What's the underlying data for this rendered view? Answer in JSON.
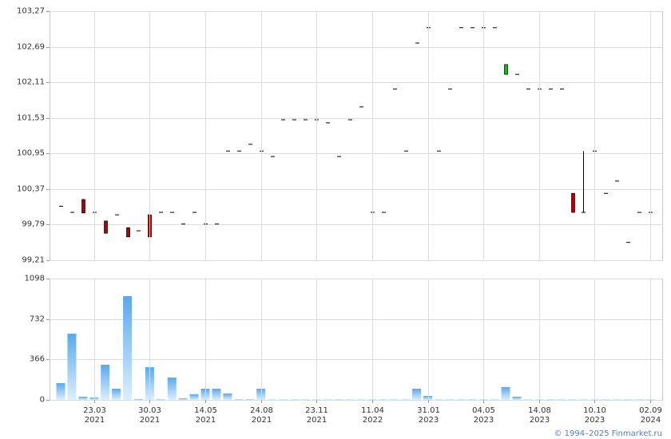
{
  "chart_data": [
    {
      "type": "candlestick",
      "open": [
        100.09,
        99.99,
        100.2,
        99.99,
        99.85,
        99.95,
        99.74,
        99.69,
        99.95,
        99.99,
        99.99,
        99.8,
        99.99,
        99.8,
        99.8,
        100.99,
        100.99,
        101.1,
        100.99,
        100.9,
        101.5,
        101.5,
        101.5,
        101.5,
        101.45,
        100.9,
        101.5,
        101.71,
        99.99,
        99.99,
        102.0,
        100.99,
        102.75,
        103.0,
        100.99,
        102.0,
        103.0,
        103.0,
        103.0,
        103.0,
        102.24,
        102.24,
        102.0,
        102.0,
        102.0,
        102.0,
        100.3,
        99.99,
        100.99,
        100.3,
        100.5,
        99.5,
        99.99,
        99.99
      ],
      "high": [
        100.09,
        99.99,
        100.2,
        99.99,
        99.85,
        99.95,
        99.74,
        99.69,
        99.95,
        99.99,
        99.99,
        99.8,
        99.99,
        99.8,
        99.8,
        100.99,
        100.99,
        101.1,
        100.99,
        100.9,
        101.5,
        101.5,
        101.5,
        101.5,
        101.45,
        100.9,
        101.5,
        101.71,
        99.99,
        99.99,
        102.0,
        100.99,
        102.75,
        103.0,
        100.99,
        102.0,
        103.0,
        103.0,
        103.0,
        103.0,
        102.4,
        102.24,
        102.0,
        102.0,
        102.0,
        102.0,
        100.3,
        100.99,
        100.99,
        100.3,
        100.5,
        99.5,
        99.99,
        99.99
      ],
      "low": [
        100.09,
        99.99,
        99.98,
        99.99,
        99.65,
        99.95,
        99.59,
        99.69,
        99.59,
        99.99,
        99.99,
        99.8,
        99.99,
        99.8,
        99.8,
        100.99,
        100.99,
        101.1,
        100.99,
        100.9,
        101.5,
        101.5,
        101.5,
        101.5,
        101.45,
        100.9,
        101.5,
        101.71,
        99.99,
        99.99,
        102.0,
        100.99,
        102.75,
        103.0,
        100.99,
        102.0,
        103.0,
        103.0,
        103.0,
        103.0,
        102.24,
        102.24,
        102.0,
        102.0,
        102.0,
        102.0,
        99.99,
        99.99,
        100.99,
        100.3,
        100.5,
        99.5,
        99.99,
        99.99
      ],
      "close": [
        100.09,
        99.99,
        99.98,
        99.99,
        99.65,
        99.95,
        99.59,
        99.69,
        99.59,
        99.99,
        99.99,
        99.8,
        99.99,
        99.8,
        99.8,
        100.99,
        100.99,
        101.1,
        100.99,
        100.9,
        101.5,
        101.5,
        101.5,
        101.5,
        101.45,
        100.9,
        101.5,
        101.71,
        99.99,
        99.99,
        102.0,
        100.99,
        102.75,
        103.0,
        100.99,
        102.0,
        103.0,
        103.0,
        103.0,
        103.0,
        102.4,
        102.24,
        102.0,
        102.0,
        102.0,
        102.0,
        99.99,
        99.99,
        100.99,
        100.3,
        100.5,
        99.5,
        99.99,
        99.99
      ],
      "up_color": "#1db31d",
      "down_color": "#b30000",
      "ylim": [
        99.21,
        103.27
      ],
      "yticks": [
        {
          "value": 99.21,
          "label": "99,21"
        },
        {
          "value": 99.79,
          "label": "99,79"
        },
        {
          "value": 100.37,
          "label": "100,37"
        },
        {
          "value": 100.95,
          "label": "100,95"
        },
        {
          "value": 101.53,
          "label": "101,53"
        },
        {
          "value": 102.11,
          "label": "102,11"
        },
        {
          "value": 102.69,
          "label": "102,69"
        },
        {
          "value": 103.27,
          "label": "103,27"
        }
      ],
      "grid": true
    },
    {
      "type": "bar",
      "categories": [
        null,
        null,
        null,
        "23.03",
        null,
        null,
        null,
        null,
        "30.03",
        null,
        null,
        null,
        null,
        "14.05",
        null,
        null,
        null,
        null,
        "24.08",
        null,
        null,
        null,
        null,
        "23.11",
        null,
        null,
        null,
        null,
        "11.04",
        null,
        null,
        null,
        null,
        "31.01",
        null,
        null,
        null,
        null,
        "04.05",
        null,
        null,
        null,
        null,
        "14.08",
        null,
        null,
        null,
        null,
        "10.10",
        null,
        null,
        null,
        null,
        "02.09"
      ],
      "category_years": [
        null,
        null,
        null,
        "2021",
        null,
        null,
        null,
        null,
        "2021",
        null,
        null,
        null,
        null,
        "2021",
        null,
        null,
        null,
        null,
        "2021",
        null,
        null,
        null,
        null,
        "2021",
        null,
        null,
        null,
        null,
        "2022",
        null,
        null,
        null,
        null,
        "2023",
        null,
        null,
        null,
        null,
        "2023",
        null,
        null,
        null,
        null,
        "2023",
        null,
        null,
        null,
        null,
        "2023",
        null,
        null,
        null,
        null,
        "2024"
      ],
      "values": [
        152,
        599,
        29,
        22,
        318,
        101,
        939,
        7,
        296,
        5,
        202,
        15,
        51,
        101,
        101,
        58,
        5,
        5,
        101,
        3,
        3,
        3,
        3,
        3,
        3,
        3,
        3,
        3,
        3,
        3,
        3,
        3,
        101,
        36,
        3,
        3,
        3,
        3,
        3,
        3,
        116,
        29,
        3,
        3,
        3,
        3,
        3,
        3,
        3,
        3,
        3,
        3,
        3,
        3
      ],
      "color": "#6fb4ee",
      "ylim": [
        0,
        1098
      ],
      "yticks": [
        0,
        366,
        732,
        1098
      ],
      "grid": true
    }
  ],
  "copyright": "© 1994–2025 Finmarket.ru"
}
